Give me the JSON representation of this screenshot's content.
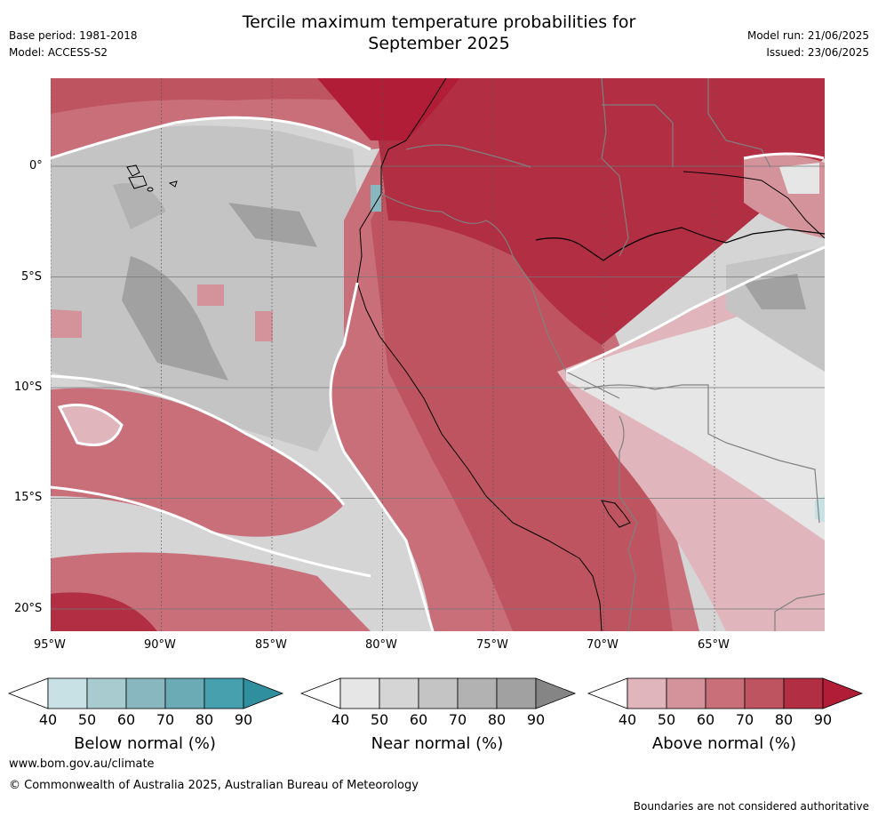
{
  "header": {
    "title_line1": "Tercile maximum temperature probabilities for",
    "title_line2": "September 2025",
    "base_period": "Base period: 1981-2018",
    "model": "Model: ACCESS-S2",
    "model_run": "Model run: 21/06/2025",
    "issued": "Issued: 23/06/2025"
  },
  "map": {
    "lon_labels": [
      "95°W",
      "90°W",
      "85°W",
      "80°W",
      "75°W",
      "70°W",
      "65°W"
    ],
    "lat_labels": [
      "0°",
      "5°S",
      "10°S",
      "15°S",
      "20°S"
    ]
  },
  "colorbars": [
    {
      "label": "Below normal (%)",
      "ticks": [
        "40",
        "50",
        "60",
        "70",
        "80",
        "90"
      ],
      "colors": [
        "#ffffff",
        "#c8e1e5",
        "#a8cbd0",
        "#89b7c0",
        "#6babb6",
        "#47a0ae",
        "#2f8f9f"
      ]
    },
    {
      "label": "Near normal (%)",
      "ticks": [
        "40",
        "50",
        "60",
        "70",
        "80",
        "90"
      ],
      "colors": [
        "#ffffff",
        "#e6e6e6",
        "#d5d5d5",
        "#c4c4c4",
        "#b2b2b2",
        "#a1a1a1",
        "#858585"
      ]
    },
    {
      "label": "Above normal (%)",
      "ticks": [
        "40",
        "50",
        "60",
        "70",
        "80",
        "90"
      ],
      "colors": [
        "#ffffff",
        "#e0b5bb",
        "#d4939b",
        "#c96f7a",
        "#bd5460",
        "#b22e42",
        "#b11c37"
      ]
    }
  ],
  "footer": {
    "url": "www.bom.gov.au/climate",
    "copyright": "© Commonwealth of Australia 2025, Australian Bureau of Meteorology",
    "disclaimer": "Boundaries are not considered authoritative"
  }
}
